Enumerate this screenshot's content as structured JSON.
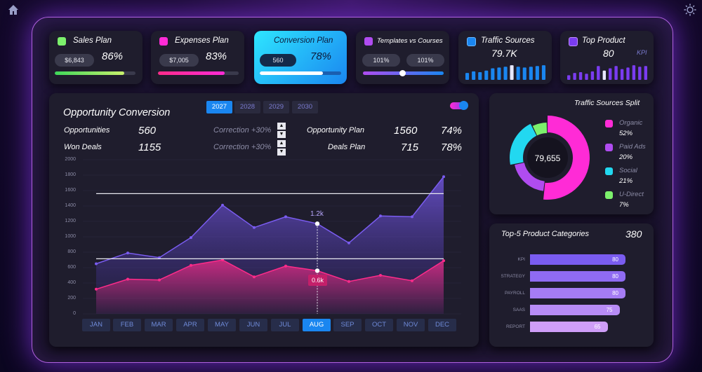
{
  "colors": {
    "accent": "#1a86f0",
    "frame": "#b061e0",
    "card": "#1f1d2d"
  },
  "corner_icons": {
    "home": "home-icon",
    "settings": "sun-icon"
  },
  "kpis": {
    "sales": {
      "title": "Sales Plan",
      "value": "$6,843",
      "pct": "86%",
      "progress": 0.86,
      "color": "#7cf06c"
    },
    "expenses": {
      "title": "Expenses Plan",
      "value": "$7,005",
      "pct": "83%",
      "progress": 0.83,
      "color": "#ff2bd6"
    },
    "conversion": {
      "title": "Conversion Plan",
      "value": "560",
      "pct": "78%",
      "progress": 0.78
    },
    "templates": {
      "title": "Templates vs Courses",
      "left": "101%",
      "right": "101%",
      "slider": 0.5
    },
    "traffic": {
      "title": "Traffic Sources",
      "value": "79.7K",
      "bars": [
        0.45,
        0.55,
        0.5,
        0.6,
        0.75,
        0.8,
        0.85,
        0.95,
        0.85,
        0.8,
        0.85,
        0.9,
        0.95
      ]
    },
    "product": {
      "title": "Top Product",
      "value": "80",
      "badge": "KPI",
      "bars": [
        0.3,
        0.45,
        0.5,
        0.4,
        0.55,
        0.9,
        0.6,
        0.75,
        0.9,
        0.7,
        0.8,
        0.95,
        0.85,
        0.9
      ]
    }
  },
  "opportunity": {
    "title": "Opportunity Conversion",
    "years": [
      "2027",
      "2028",
      "2029",
      "2030"
    ],
    "active_year": "2027",
    "opportunities_label": "Opportunities",
    "opportunities": "560",
    "won_label": "Won Deals",
    "won": "1155",
    "correction_label": "Correction",
    "correction1": "+30%",
    "correction2": "+30%",
    "opp_plan_label": "Opportunity Plan",
    "opp_plan": "1560",
    "opp_plan_pct": "74%",
    "deals_plan_label": "Deals Plan",
    "deals_plan": "715",
    "deals_plan_pct": "78%",
    "tooltip_high": "1.2k",
    "tooltip_low": "0.6k",
    "months": [
      "JAN",
      "FEB",
      "MAR",
      "APR",
      "MAY",
      "JUN",
      "JUL",
      "AUG",
      "SEP",
      "OCT",
      "NOV",
      "DEC"
    ],
    "active_month": "AUG"
  },
  "chart_data": {
    "type": "area",
    "categories": [
      "JAN",
      "FEB",
      "MAR",
      "APR",
      "MAY",
      "JUN",
      "JUL",
      "AUG",
      "SEP",
      "OCT",
      "NOV",
      "DEC"
    ],
    "ylim": [
      0,
      2000
    ],
    "yticks": [
      "0",
      "200",
      "400",
      "600",
      "800",
      "1000",
      "1200",
      "1400",
      "1600",
      "1800",
      "2000"
    ],
    "series": [
      {
        "values": [
          650,
          790,
          730,
          990,
          1410,
          1120,
          1260,
          1170,
          920,
          1270,
          1260,
          1780
        ],
        "color": "#7a5cf0"
      },
      {
        "values": [
          320,
          450,
          440,
          630,
          700,
          480,
          620,
          560,
          420,
          500,
          430,
          690
        ],
        "color": "#ff2b8a"
      }
    ],
    "reference_lines": [
      1560,
      715
    ],
    "highlight_index": 7
  },
  "traffic_split": {
    "title": "Traffic Sources Split",
    "total": "79,655",
    "items": [
      {
        "name": "Organic",
        "pct": "52%",
        "value": 52,
        "color": "#ff2bd6"
      },
      {
        "name": "Paid Ads",
        "pct": "20%",
        "value": 20,
        "color": "#b04cf0"
      },
      {
        "name": "Social",
        "pct": "21%",
        "value": 21,
        "color": "#22d8f0"
      },
      {
        "name": "U-Direct",
        "pct": "7%",
        "value": 7,
        "color": "#7cf06c"
      }
    ]
  },
  "categories": {
    "title": "Top-5 Product Categories",
    "total": "380",
    "items": [
      {
        "name": "KPI",
        "value": "80",
        "fraction": 0.8,
        "color": "#7a5cf0"
      },
      {
        "name": "STRATEGY",
        "value": "80",
        "fraction": 0.8,
        "color": "#8f6bf2"
      },
      {
        "name": "PAYROLL",
        "value": "80",
        "fraction": 0.8,
        "color": "#a57cf4"
      },
      {
        "name": "SAAS",
        "value": "75",
        "fraction": 0.75,
        "color": "#b88cf6"
      },
      {
        "name": "REPORT",
        "value": "65",
        "fraction": 0.65,
        "color": "#cf9ef8"
      }
    ]
  }
}
